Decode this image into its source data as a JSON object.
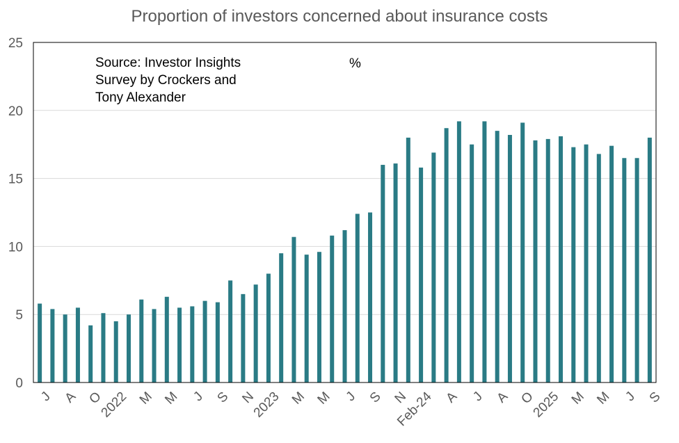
{
  "chart_data": {
    "type": "bar",
    "title": "Proportion of investors concerned about insurance costs",
    "annotation": "Source: Investor Insights Survey by Crockers and Tony Alexander",
    "unit": "%",
    "ylim": [
      0,
      25
    ],
    "yticks": [
      0,
      5,
      10,
      15,
      20,
      25
    ],
    "grid": true,
    "bar_color": "#2A7B85",
    "values": [
      5.8,
      5.4,
      5.0,
      5.5,
      4.2,
      5.1,
      4.5,
      5.0,
      6.1,
      5.4,
      6.3,
      5.5,
      5.6,
      6.0,
      5.9,
      7.5,
      6.5,
      7.2,
      8.0,
      9.5,
      10.7,
      9.4,
      9.6,
      10.8,
      11.2,
      12.4,
      12.5,
      16.0,
      16.1,
      18.0,
      15.8,
      16.9,
      18.7,
      19.2,
      17.5,
      19.2,
      18.5,
      18.2,
      19.1,
      17.8,
      17.9,
      18.1,
      17.3,
      17.5,
      16.8,
      17.4,
      16.5,
      16.5,
      18.0
    ],
    "xtick_labels": [
      {
        "index": 0,
        "label": "J"
      },
      {
        "index": 2,
        "label": "A"
      },
      {
        "index": 4,
        "label": "O"
      },
      {
        "index": 6,
        "label": "2022"
      },
      {
        "index": 8,
        "label": "M"
      },
      {
        "index": 10,
        "label": "M"
      },
      {
        "index": 12,
        "label": "J"
      },
      {
        "index": 14,
        "label": "S"
      },
      {
        "index": 16,
        "label": "N"
      },
      {
        "index": 18,
        "label": "2023"
      },
      {
        "index": 20,
        "label": "M"
      },
      {
        "index": 22,
        "label": "M"
      },
      {
        "index": 24,
        "label": "J"
      },
      {
        "index": 26,
        "label": "S"
      },
      {
        "index": 28,
        "label": "N"
      },
      {
        "index": 30,
        "label": "Feb-24"
      },
      {
        "index": 32,
        "label": "A"
      },
      {
        "index": 34,
        "label": "J"
      },
      {
        "index": 36,
        "label": "A"
      },
      {
        "index": 38,
        "label": "O"
      },
      {
        "index": 40,
        "label": "2025"
      },
      {
        "index": 42,
        "label": "M"
      },
      {
        "index": 44,
        "label": "M"
      },
      {
        "index": 46,
        "label": "J"
      },
      {
        "index": 48,
        "label": "S"
      }
    ]
  }
}
